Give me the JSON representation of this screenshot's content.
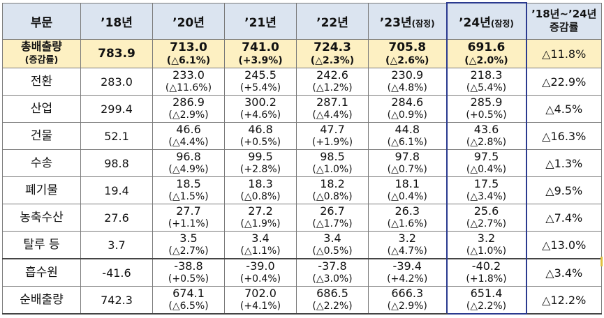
{
  "headers": {
    "sector": "부문",
    "y18": "’18년",
    "y20": "’20년",
    "y21": "’21년",
    "y22": "’22년",
    "y23": "’23년",
    "y23_note": "(잠정)",
    "y24": "’24년",
    "y24_note": "(잠정)",
    "change_line1": "’18년~’24년",
    "change_line2": "증감률"
  },
  "total": {
    "label_line1": "총배출량",
    "label_line2": "(증감률)",
    "y18": "783.9",
    "y20": "713.0",
    "y20_pct": "(△6.1%)",
    "y21": "741.0",
    "y21_pct": "(+3.9%)",
    "y22": "724.3",
    "y22_pct": "(△2.3%)",
    "y23": "705.8",
    "y23_pct": "(△2.6%)",
    "y24": "691.6",
    "y24_pct": "(△2.0%)",
    "change": "△11.8%"
  },
  "rows": [
    {
      "label": "전환",
      "y18": "283.0",
      "y20": "233.0",
      "y20_pct": "(△11.6%)",
      "y21": "245.5",
      "y21_pct": "(+5.4%)",
      "y22": "242.6",
      "y22_pct": "(△1.2%)",
      "y23": "230.9",
      "y23_pct": "(△4.8%)",
      "y24": "218.3",
      "y24_pct": "(△5.4%)",
      "change": "△22.9%"
    },
    {
      "label": "산업",
      "y18": "299.4",
      "y20": "286.9",
      "y20_pct": "(△2.9%)",
      "y21": "300.2",
      "y21_pct": "(+4.6%)",
      "y22": "287.1",
      "y22_pct": "(△4.4%)",
      "y23": "284.6",
      "y23_pct": "(△0.9%)",
      "y24": "285.9",
      "y24_pct": "(+0.5%)",
      "change": "△4.5%"
    },
    {
      "label": "건물",
      "y18": "52.1",
      "y20": "46.6",
      "y20_pct": "(△4.4%)",
      "y21": "46.8",
      "y21_pct": "(+0.5%)",
      "y22": "47.7",
      "y22_pct": "(+1.9%)",
      "y23": "44.8",
      "y23_pct": "(△6.1%)",
      "y24": "43.6",
      "y24_pct": "(△2.8%)",
      "change": "△16.3%"
    },
    {
      "label": "수송",
      "y18": "98.8",
      "y20": "96.8",
      "y20_pct": "(△4.9%)",
      "y21": "99.5",
      "y21_pct": "(+2.8%)",
      "y22": "98.5",
      "y22_pct": "(△1.0%)",
      "y23": "97.8",
      "y23_pct": "(△0.7%)",
      "y24": "97.5",
      "y24_pct": "(△0.4%)",
      "change": "△1.3%"
    },
    {
      "label": "폐기물",
      "y18": "19.4",
      "y20": "18.5",
      "y20_pct": "(△1.5%)",
      "y21": "18.3",
      "y21_pct": "(△0.8%)",
      "y22": "18.2",
      "y22_pct": "(△0.8%)",
      "y23": "18.1",
      "y23_pct": "(△0.4%)",
      "y24": "17.5",
      "y24_pct": "(△3.4%)",
      "change": "△9.5%"
    },
    {
      "label": "농축수산",
      "y18": "27.6",
      "y20": "27.7",
      "y20_pct": "(+1.1%)",
      "y21": "27.2",
      "y21_pct": "(△1.9%)",
      "y22": "26.7",
      "y22_pct": "(△1.7%)",
      "y23": "26.3",
      "y23_pct": "(△1.6%)",
      "y24": "25.6",
      "y24_pct": "(△2.7%)",
      "change": "△7.4%"
    },
    {
      "label": "탈루 등",
      "y18": "3.7",
      "y20": "3.5",
      "y20_pct": "(△2.7%)",
      "y21": "3.4",
      "y21_pct": "(△1.1%)",
      "y22": "3.4",
      "y22_pct": "(△0.5%)",
      "y23": "3.2",
      "y23_pct": "(△4.7%)",
      "y24": "3.2",
      "y24_pct": "(△1.0%)",
      "change": "△13.0%"
    },
    {
      "label": "흡수원",
      "y18": "-41.6",
      "y20": "-38.8",
      "y20_pct": "(+0.5%)",
      "y21": "-39.0",
      "y21_pct": "(+0.4%)",
      "y22": "-37.8",
      "y22_pct": "(△3.0%)",
      "y23": "-39.4",
      "y23_pct": "(+4.2%)",
      "y24": "-40.2",
      "y24_pct": "(+1.8%)",
      "change": "△3.4%"
    },
    {
      "label": "순배출량",
      "y18": "742.3",
      "y20": "674.1",
      "y20_pct": "(△6.5%)",
      "y21": "702.0",
      "y21_pct": "(+4.1%)",
      "y22": "686.5",
      "y22_pct": "(△2.2%)",
      "y23": "666.3",
      "y23_pct": "(△2.9%)",
      "y24": "651.4",
      "y24_pct": "(△2.2%)",
      "change": "△12.2%"
    }
  ],
  "colors": {
    "header_bg": "#dbe4f0",
    "total_bg": "#fdf0c2",
    "highlight_border": "#2b3a8f"
  }
}
